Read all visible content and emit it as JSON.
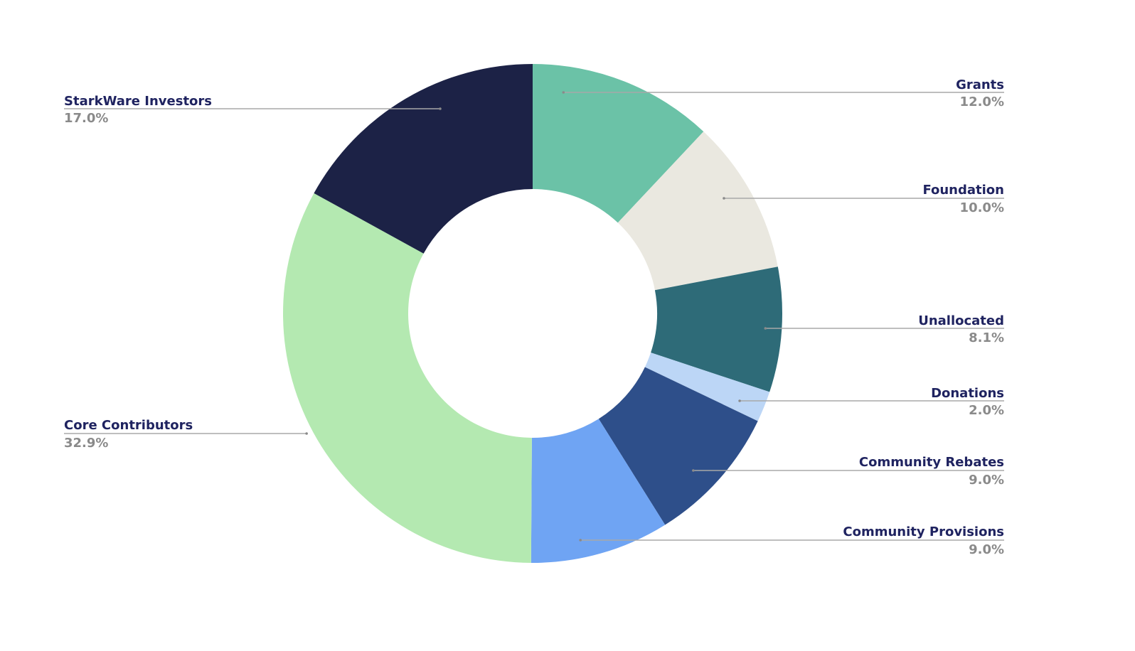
{
  "chart_data": {
    "type": "pie",
    "donut": true,
    "title": "",
    "slices": [
      {
        "label": "Grants",
        "value": 12.0,
        "value_text": "12.0%",
        "color": "#6bc2a7"
      },
      {
        "label": "Foundation",
        "value": 10.0,
        "value_text": "10.0%",
        "color": "#eae8e0"
      },
      {
        "label": "Unallocated",
        "value": 8.1,
        "value_text": "8.1%",
        "color": "#2e6b78"
      },
      {
        "label": "Donations",
        "value": 2.0,
        "value_text": "2.0%",
        "color": "#bcd6f6"
      },
      {
        "label": "Community Rebates",
        "value": 9.0,
        "value_text": "9.0%",
        "color": "#2e4f8a"
      },
      {
        "label": "Community Provisions",
        "value": 9.0,
        "value_text": "9.0%",
        "color": "#6fa4f3"
      },
      {
        "label": "Core Contributors",
        "value": 32.9,
        "value_text": "32.9%",
        "color": "#b4e9b1"
      },
      {
        "label": "StarkWare Investors",
        "value": 17.0,
        "value_text": "17.0%",
        "color": "#1c2246"
      }
    ],
    "label_color": "#1f2360",
    "value_color": "#8a8a8a",
    "leader_color": "#a8a8a8"
  }
}
